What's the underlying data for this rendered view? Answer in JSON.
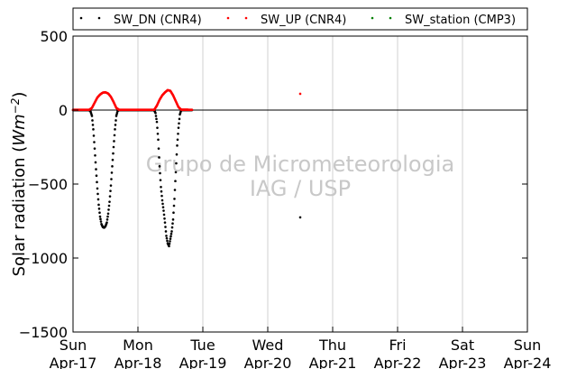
{
  "chart_data": {
    "type": "scatter",
    "title": "",
    "ylabel": "Solar radiation (W m-2)",
    "ylabel_parts": {
      "prefix": "Solar radiation (",
      "unit": "Wm",
      "exp": "−2",
      "suffix": ")"
    },
    "xlabel": "",
    "ylim": [
      -1500,
      500
    ],
    "y_ticks": [
      500,
      0,
      -500,
      -1000,
      -1500
    ],
    "y_tick_labels": [
      "500",
      "0",
      "−500",
      "−1000",
      "−1500"
    ],
    "xlim": [
      "2016-04-17",
      "2016-04-24"
    ],
    "x_ticks": [
      {
        "date": "2016-04-17",
        "day": "Sun",
        "label": "Apr-17"
      },
      {
        "date": "2016-04-18",
        "day": "Mon",
        "label": "Apr-18"
      },
      {
        "date": "2016-04-19",
        "day": "Tue",
        "label": "Apr-19"
      },
      {
        "date": "2016-04-20",
        "day": "Wed",
        "label": "Apr-20"
      },
      {
        "date": "2016-04-21",
        "day": "Thu",
        "label": "Apr-21"
      },
      {
        "date": "2016-04-22",
        "day": "Fri",
        "label": "Apr-22"
      },
      {
        "date": "2016-04-23",
        "day": "Sat",
        "label": "Apr-23"
      },
      {
        "date": "2016-04-24",
        "day": "Sun",
        "label": "Apr-24"
      }
    ],
    "grid": "vertical",
    "legend_position": "top",
    "watermark": [
      "Grupo de Micrometeorologia",
      "IAG / USP"
    ],
    "series": [
      {
        "name": "SW_DN (CNR4)",
        "color": "#000000",
        "points": [
          {
            "x": "2016-04-17 00:00",
            "y": 0
          },
          {
            "x": "2016-04-17 06:00",
            "y": 0
          },
          {
            "x": "2016-04-17 06:30",
            "y": -10
          },
          {
            "x": "2016-04-17 07:00",
            "y": -40
          },
          {
            "x": "2016-04-17 07:30",
            "y": -130
          },
          {
            "x": "2016-04-17 08:00",
            "y": -260
          },
          {
            "x": "2016-04-17 08:30",
            "y": -400
          },
          {
            "x": "2016-04-17 09:00",
            "y": -530
          },
          {
            "x": "2016-04-17 09:30",
            "y": -640
          },
          {
            "x": "2016-04-17 10:00",
            "y": -720
          },
          {
            "x": "2016-04-17 10:30",
            "y": -770
          },
          {
            "x": "2016-04-17 11:00",
            "y": -790
          },
          {
            "x": "2016-04-17 11:30",
            "y": -795
          },
          {
            "x": "2016-04-17 12:00",
            "y": -785
          },
          {
            "x": "2016-04-17 12:30",
            "y": -760
          },
          {
            "x": "2016-04-17 13:00",
            "y": -700
          },
          {
            "x": "2016-04-17 13:30",
            "y": -620
          },
          {
            "x": "2016-04-17 14:00",
            "y": -510
          },
          {
            "x": "2016-04-17 14:30",
            "y": -380
          },
          {
            "x": "2016-04-17 15:00",
            "y": -250
          },
          {
            "x": "2016-04-17 15:30",
            "y": -130
          },
          {
            "x": "2016-04-17 16:00",
            "y": -40
          },
          {
            "x": "2016-04-17 16:30",
            "y": -5
          },
          {
            "x": "2016-04-17 17:00",
            "y": 0
          },
          {
            "x": "2016-04-18 00:00",
            "y": 0
          },
          {
            "x": "2016-04-18 06:00",
            "y": 0
          },
          {
            "x": "2016-04-18 06:30",
            "y": -20
          },
          {
            "x": "2016-04-18 07:00",
            "y": -80
          },
          {
            "x": "2016-04-18 07:30",
            "y": -200
          },
          {
            "x": "2016-04-18 08:00",
            "y": -380
          },
          {
            "x": "2016-04-18 08:30",
            "y": -520
          },
          {
            "x": "2016-04-18 09:00",
            "y": -610
          },
          {
            "x": "2016-04-18 09:30",
            "y": -680
          },
          {
            "x": "2016-04-18 10:00",
            "y": -760
          },
          {
            "x": "2016-04-18 10:30",
            "y": -850
          },
          {
            "x": "2016-04-18 11:00",
            "y": -900
          },
          {
            "x": "2016-04-18 11:30",
            "y": -920
          },
          {
            "x": "2016-04-18 12:00",
            "y": -870
          },
          {
            "x": "2016-04-18 12:30",
            "y": -820
          },
          {
            "x": "2016-04-18 13:00",
            "y": -740
          },
          {
            "x": "2016-04-18 13:30",
            "y": -600
          },
          {
            "x": "2016-04-18 14:00",
            "y": -420
          },
          {
            "x": "2016-04-18 14:30",
            "y": -240
          },
          {
            "x": "2016-04-18 15:00",
            "y": -120
          },
          {
            "x": "2016-04-18 15:30",
            "y": -30
          },
          {
            "x": "2016-04-18 16:00",
            "y": 0
          },
          {
            "x": "2016-04-18 20:00",
            "y": 0
          },
          {
            "x": "2016-04-20 12:00",
            "y": -725
          }
        ]
      },
      {
        "name": "SW_UP (CNR4)",
        "color": "#ff0000",
        "points": [
          {
            "x": "2016-04-17 00:00",
            "y": 2
          },
          {
            "x": "2016-04-17 06:00",
            "y": 2
          },
          {
            "x": "2016-04-17 07:00",
            "y": 15
          },
          {
            "x": "2016-04-17 08:00",
            "y": 50
          },
          {
            "x": "2016-04-17 09:00",
            "y": 85
          },
          {
            "x": "2016-04-17 10:00",
            "y": 105
          },
          {
            "x": "2016-04-17 11:00",
            "y": 118
          },
          {
            "x": "2016-04-17 12:00",
            "y": 120
          },
          {
            "x": "2016-04-17 13:00",
            "y": 112
          },
          {
            "x": "2016-04-17 14:00",
            "y": 90
          },
          {
            "x": "2016-04-17 15:00",
            "y": 55
          },
          {
            "x": "2016-04-17 16:00",
            "y": 15
          },
          {
            "x": "2016-04-17 17:00",
            "y": 2
          },
          {
            "x": "2016-04-18 00:00",
            "y": 2
          },
          {
            "x": "2016-04-18 06:00",
            "y": 2
          },
          {
            "x": "2016-04-18 07:00",
            "y": 30
          },
          {
            "x": "2016-04-18 08:00",
            "y": 70
          },
          {
            "x": "2016-04-18 09:00",
            "y": 100
          },
          {
            "x": "2016-04-18 10:00",
            "y": 120
          },
          {
            "x": "2016-04-18 11:00",
            "y": 135
          },
          {
            "x": "2016-04-18 12:00",
            "y": 130
          },
          {
            "x": "2016-04-18 13:00",
            "y": 100
          },
          {
            "x": "2016-04-18 14:00",
            "y": 60
          },
          {
            "x": "2016-04-18 15:00",
            "y": 20
          },
          {
            "x": "2016-04-18 16:00",
            "y": 3
          },
          {
            "x": "2016-04-18 20:00",
            "y": 2
          },
          {
            "x": "2016-04-20 12:00",
            "y": 110
          }
        ]
      },
      {
        "name": "SW_station (CMP3)",
        "color": "#008000",
        "points": []
      }
    ]
  }
}
